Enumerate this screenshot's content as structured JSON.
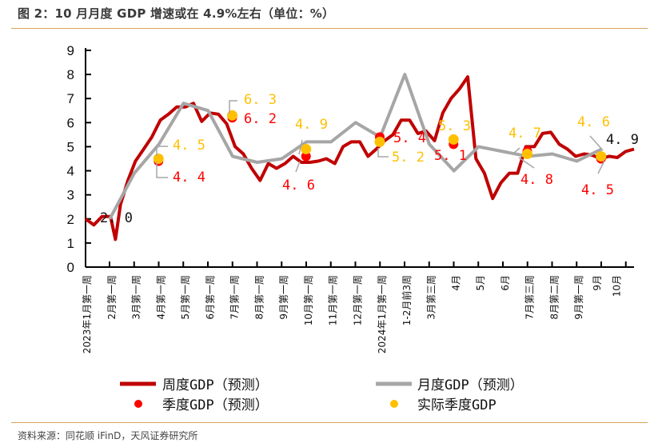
{
  "header": {
    "title": "图 2：10 月月度 GDP 增速或在 4.9%左右（单位：%）"
  },
  "footer": {
    "source": "资料来源：同花顺 iFinD，天风证券研究所"
  },
  "colors": {
    "weekly": "#c00000",
    "monthly": "#a6a6a6",
    "quarterly_pred": "#ff0000",
    "quarterly_actual": "#ffc000",
    "rule": "#d9a35a"
  },
  "chart_data": {
    "type": "line",
    "title": "10 月月度 GDP 增速或在 4.9%左右（单位：%）",
    "xlabel": "",
    "ylabel": "%",
    "ylim": [
      0,
      9
    ],
    "yticks": [
      "0",
      "1",
      "2",
      "3",
      "4",
      "5",
      "6",
      "7",
      "8",
      "9"
    ],
    "grid": false,
    "legend_position": "bottom",
    "categories": [
      "2023年1月第一周",
      "2月第一周",
      "3月第一周",
      "4月第一周",
      "5月第一周",
      "6月第一周",
      "7月第一周",
      "8月第一周",
      "9月第一周",
      "10月第一周",
      "11月第一周",
      "12月第一周",
      "2024年1月第一周",
      "1-2月前3周",
      "3月第三周",
      "4月",
      "5月",
      "6月",
      "7月第三周",
      "8月第二周",
      "9月第一周",
      "9月",
      "10月"
    ],
    "series": [
      {
        "name": "周度GDP（预测）",
        "kind": "line",
        "x": [
          0,
          0.33,
          0.66,
          1,
          1.2,
          1.4,
          1.7,
          2,
          2.33,
          2.66,
          3,
          3.33,
          3.66,
          4,
          4.33,
          4.66,
          5,
          5.33,
          5.66,
          6,
          6.33,
          6.66,
          7,
          7.33,
          7.66,
          8,
          8.33,
          8.66,
          9,
          9.33,
          9.66,
          10,
          10.33,
          10.66,
          11,
          11.33,
          11.66,
          12,
          12.33,
          12.66,
          13,
          13.33,
          13.66,
          14,
          14.33,
          14.66,
          15,
          15.33,
          15.66,
          16,
          16.33,
          16.66,
          17,
          17.33,
          17.66,
          18,
          18.33,
          18.66,
          19,
          19.33,
          19.66,
          20,
          20.33,
          20.66,
          21,
          21.33,
          21.66,
          22
        ],
        "values": [
          2.0,
          1.75,
          2.1,
          2.1,
          1.15,
          2.6,
          3.6,
          4.4,
          4.9,
          5.4,
          6.1,
          6.35,
          6.65,
          6.65,
          6.8,
          6.05,
          6.4,
          6.35,
          5.95,
          5.0,
          4.7,
          4.1,
          3.6,
          4.3,
          4.1,
          4.3,
          4.6,
          4.35,
          4.35,
          4.4,
          4.5,
          4.3,
          5.0,
          5.2,
          5.2,
          4.6,
          4.9,
          5.25,
          5.5,
          6.1,
          6.1,
          5.55,
          5.65,
          5.25,
          6.4,
          7.0,
          7.4,
          7.9,
          4.5,
          3.9,
          2.85,
          3.5,
          3.9,
          3.9,
          5.0,
          5.0,
          5.55,
          5.6,
          5.1,
          4.9,
          4.6,
          4.7,
          4.65,
          4.5,
          4.6,
          4.55,
          4.8,
          4.9
        ]
      },
      {
        "name": "月度GDP（预测）",
        "kind": "line",
        "x": [
          1,
          2,
          3,
          4,
          5,
          6,
          7,
          8,
          9,
          10,
          11,
          12,
          13,
          14,
          15,
          16,
          17,
          18,
          19,
          20,
          21
        ],
        "values": [
          2.0,
          3.9,
          5.1,
          6.8,
          6.5,
          4.6,
          4.35,
          4.5,
          5.2,
          5.2,
          6.0,
          5.4,
          8.0,
          5.1,
          4.0,
          5.0,
          4.8,
          4.6,
          4.7,
          4.4,
          4.9
        ]
      },
      {
        "name": "季度GDP（预测）",
        "kind": "scatter",
        "points": [
          {
            "x": 3,
            "value": 4.4
          },
          {
            "x": 6,
            "value": 6.2
          },
          {
            "x": 9,
            "value": 4.6
          },
          {
            "x": 12,
            "value": 5.4
          },
          {
            "x": 15,
            "value": 5.1
          },
          {
            "x": 18,
            "value": 4.8
          },
          {
            "x": 21,
            "value": 4.5
          }
        ]
      },
      {
        "name": "实际季度GDP",
        "kind": "scatter",
        "points": [
          {
            "x": 3,
            "value": 4.5
          },
          {
            "x": 6,
            "value": 6.3
          },
          {
            "x": 9,
            "value": 4.9
          },
          {
            "x": 12,
            "value": 5.2
          },
          {
            "x": 15,
            "value": 5.3
          },
          {
            "x": 18,
            "value": 4.7
          },
          {
            "x": 21,
            "value": 4.6
          }
        ]
      }
    ],
    "annotations": [
      {
        "text": "2.0",
        "series": "月度GDP（预测）",
        "color": "#111111"
      },
      {
        "text": "4.5",
        "series": "实际季度GDP",
        "color": "#ffc000"
      },
      {
        "text": "4.4",
        "series": "季度GDP（预测）",
        "color": "#ff0000"
      },
      {
        "text": "6.3",
        "series": "实际季度GDP",
        "color": "#ffc000"
      },
      {
        "text": "6.2",
        "series": "季度GDP（预测）",
        "color": "#ff0000"
      },
      {
        "text": "4.9",
        "series": "实际季度GDP",
        "color": "#ffc000"
      },
      {
        "text": "4.6",
        "series": "季度GDP（预测）",
        "color": "#ff0000"
      },
      {
        "text": "5.4",
        "series": "季度GDP（预测）",
        "color": "#ff0000"
      },
      {
        "text": "5.2",
        "series": "实际季度GDP",
        "color": "#ffc000"
      },
      {
        "text": "5.3",
        "series": "实际季度GDP",
        "color": "#ffc000"
      },
      {
        "text": "5.1",
        "series": "季度GDP（预测）",
        "color": "#ff0000"
      },
      {
        "text": "4.7",
        "series": "实际季度GDP",
        "color": "#ffc000"
      },
      {
        "text": "4.8",
        "series": "季度GDP（预测）",
        "color": "#ff0000"
      },
      {
        "text": "4.6",
        "series": "实际季度GDP",
        "color": "#ffc000"
      },
      {
        "text": "4.5",
        "series": "季度GDP（预测）",
        "color": "#ff0000"
      },
      {
        "text": "4.9",
        "series": "月度GDP（预测）",
        "color": "#111111"
      }
    ],
    "legend": [
      {
        "label": "周度GDP（预测）",
        "symbol": "line",
        "color": "#c00000"
      },
      {
        "label": "月度GDP（预测）",
        "symbol": "line",
        "color": "#a6a6a6"
      },
      {
        "label": "季度GDP（预测）",
        "symbol": "dot",
        "color": "#ff0000"
      },
      {
        "label": "实际季度GDP",
        "symbol": "dot",
        "color": "#ffc000"
      }
    ]
  }
}
